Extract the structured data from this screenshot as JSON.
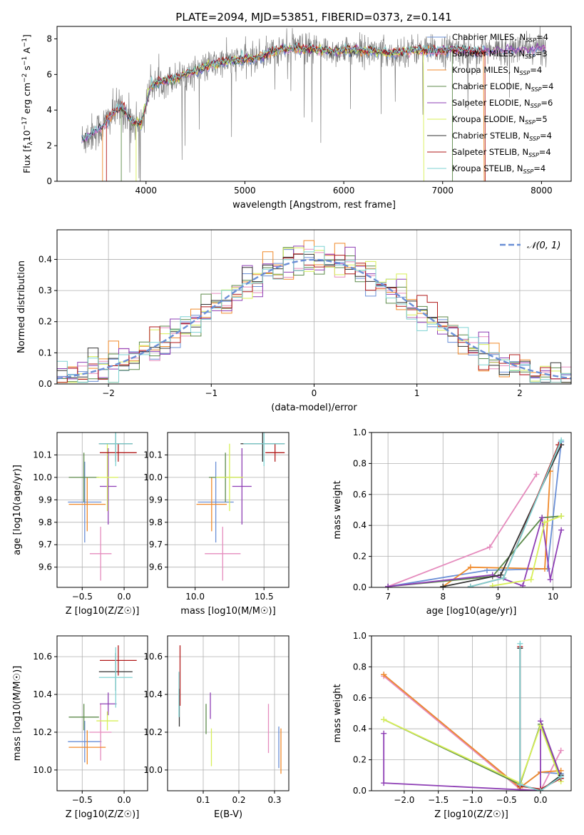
{
  "title": "PLATE=2094, MJD=53851, FIBERID=0373, z=0.141",
  "colors": {
    "Chabrier MILES": "#6a8fd6",
    "Salpeter MILES": "#e58bbd",
    "Kroupa MILES": "#f08a2b",
    "Chabrier ELODIE": "#5c8a4a",
    "Salpeter ELODIE": "#8e3fb5",
    "Kroupa ELODIE": "#d7ef57",
    "Chabrier STELIB": "#333333",
    "Salpeter STELIB": "#b11a1a",
    "Kroupa STELIB": "#7fd3d3",
    "data": "#808080",
    "normal": "#6a8fd6"
  },
  "chart_data": [
    {
      "id": "spectrum",
      "type": "line",
      "xlabel": "wavelength [Angstrom, rest frame]",
      "ylabel": "Flux [f_λ 10^-17 erg cm^-2 s^-1 A^-1]",
      "xlim": [
        3100,
        8300
      ],
      "ylim": [
        0,
        8.7
      ],
      "xticks": [
        4000,
        5000,
        6000,
        7000,
        8000
      ],
      "yticks": [
        0,
        2,
        4,
        6,
        8
      ],
      "legend_position": "upper right",
      "legend": [
        {
          "model": "Chabrier MILES",
          "nssp": "4"
        },
        {
          "model": "Salpeter MILES",
          "nssp": "3"
        },
        {
          "model": "Kroupa MILES",
          "nssp": "4"
        },
        {
          "model": "Chabrier ELODIE",
          "nssp": "4"
        },
        {
          "model": "Salpeter ELODIE",
          "nssp": "6"
        },
        {
          "model": "Kroupa ELODIE",
          "nssp": "5"
        },
        {
          "model": "Chabrier STELIB",
          "nssp": "4"
        },
        {
          "model": "Salpeter STELIB",
          "nssp": "4"
        },
        {
          "model": "Kroupa STELIB",
          "nssp": "4"
        }
      ],
      "continuum": {
        "x": [
          3350,
          3450,
          3550,
          3650,
          3750,
          3850,
          3950,
          4050,
          4150,
          4300,
          4500,
          4700,
          4900,
          5100,
          5300,
          5500,
          5700,
          5900,
          6100,
          6300,
          6500,
          6700,
          6900,
          7100,
          7300,
          7420
        ],
        "y": [
          2.3,
          2.7,
          3.0,
          3.7,
          4.2,
          3.4,
          3.2,
          5.4,
          5.6,
          5.8,
          6.2,
          6.6,
          6.8,
          6.9,
          7.3,
          7.5,
          7.4,
          7.3,
          7.4,
          7.3,
          7.2,
          7.4,
          7.3,
          7.4,
          7.3,
          7.3
        ]
      }
    },
    {
      "id": "residuals",
      "type": "histogram",
      "xlabel": "(data-model)/error",
      "ylabel": "Normed distribution",
      "xlim": [
        -2.5,
        2.5
      ],
      "ylim": [
        0,
        0.495
      ],
      "xticks": [
        -2,
        -1,
        0,
        1,
        2
      ],
      "yticks": [
        0.0,
        0.1,
        0.2,
        0.3,
        0.4
      ],
      "legend": "𝒩(0, 1)",
      "bin_width": 0.1
    },
    {
      "id": "age_vs_Z",
      "type": "errorbar",
      "xlabel": "Z [log10(Z/Z☉)]",
      "ylabel": "age [log10(age/yr)]",
      "xlim": [
        -0.8,
        0.28
      ],
      "ylim": [
        9.51,
        10.2
      ],
      "xticks": [
        -0.5,
        0.0
      ],
      "yticks": [
        9.6,
        9.7,
        9.8,
        9.9,
        10.0,
        10.1
      ],
      "points": [
        {
          "model": "Chabrier MILES",
          "x": -0.47,
          "xerr": 0.2,
          "y": 9.89,
          "yerr": 0.18
        },
        {
          "model": "Salpeter MILES",
          "x": -0.28,
          "xerr": 0.13,
          "y": 9.66,
          "yerr": 0.12
        },
        {
          "model": "Kroupa MILES",
          "x": -0.44,
          "xerr": 0.22,
          "y": 9.88,
          "yerr": 0.12
        },
        {
          "model": "Chabrier ELODIE",
          "x": -0.48,
          "xerr": 0.18,
          "y": 10.0,
          "yerr": 0.11
        },
        {
          "model": "Salpeter ELODIE",
          "x": -0.19,
          "xerr": 0.1,
          "y": 9.96,
          "yerr": 0.17
        },
        {
          "model": "Kroupa ELODIE",
          "x": -0.2,
          "xerr": 0.13,
          "y": 10.0,
          "yerr": 0.15
        },
        {
          "model": "Chabrier STELIB",
          "x": -0.1,
          "xerr": 0.2,
          "y": 10.15,
          "yerr": 0.08
        },
        {
          "model": "Salpeter STELIB",
          "x": -0.07,
          "xerr": 0.22,
          "y": 10.11,
          "yerr": 0.04
        },
        {
          "model": "Kroupa STELIB",
          "x": -0.1,
          "xerr": 0.2,
          "y": 10.15,
          "yerr": 0.1
        }
      ]
    },
    {
      "id": "age_vs_mass",
      "type": "errorbar",
      "xlabel": "mass [log10(M/M☉)]",
      "ylabel": "",
      "xlim": [
        9.8,
        10.68
      ],
      "ylim": [
        9.51,
        10.2
      ],
      "xticks": [
        10.0,
        10.5
      ],
      "yticks": [
        9.6,
        9.7,
        9.8,
        9.9,
        10.0,
        10.1
      ],
      "points": [
        {
          "model": "Chabrier MILES",
          "x": 10.15,
          "xerr": 0.13,
          "y": 9.89,
          "yerr": 0.18
        },
        {
          "model": "Salpeter MILES",
          "x": 10.2,
          "xerr": 0.13,
          "y": 9.66,
          "yerr": 0.12
        },
        {
          "model": "Kroupa MILES",
          "x": 10.12,
          "xerr": 0.11,
          "y": 9.88,
          "yerr": 0.12
        },
        {
          "model": "Chabrier ELODIE",
          "x": 10.22,
          "xerr": 0.12,
          "y": 10.0,
          "yerr": 0.11
        },
        {
          "model": "Salpeter ELODIE",
          "x": 10.34,
          "xerr": 0.07,
          "y": 9.96,
          "yerr": 0.17
        },
        {
          "model": "Kroupa ELODIE",
          "x": 10.25,
          "xerr": 0.1,
          "y": 10.0,
          "yerr": 0.15
        },
        {
          "model": "Chabrier STELIB",
          "x": 10.49,
          "xerr": 0.16,
          "y": 10.15,
          "yerr": 0.08
        },
        {
          "model": "Salpeter STELIB",
          "x": 10.58,
          "xerr": 0.07,
          "y": 10.11,
          "yerr": 0.04
        },
        {
          "model": "Kroupa STELIB",
          "x": 10.5,
          "xerr": 0.15,
          "y": 10.15,
          "yerr": 0.1
        }
      ]
    },
    {
      "id": "weight_vs_age",
      "type": "line",
      "xlabel": "age [log10(age/yr)]",
      "ylabel": "mass weight",
      "xlim": [
        6.7,
        10.33
      ],
      "ylim": [
        0,
        1
      ],
      "xticks": [
        7,
        8,
        9,
        10
      ],
      "yticks": [
        0.0,
        0.2,
        0.4,
        0.6,
        0.8,
        1.0
      ],
      "series": [
        {
          "model": "Chabrier MILES",
          "x": [
            7.0,
            8.8,
            9.9,
            10.15
          ],
          "y": [
            0.005,
            0.11,
            0.12,
            0.94
          ]
        },
        {
          "model": "Salpeter MILES",
          "x": [
            7.0,
            8.85,
            9.7
          ],
          "y": [
            0.005,
            0.26,
            0.73
          ]
        },
        {
          "model": "Kroupa MILES",
          "x": [
            8.0,
            8.5,
            9.85,
            9.95
          ],
          "y": [
            0.005,
            0.13,
            0.12,
            0.75
          ]
        },
        {
          "model": "Chabrier ELODIE",
          "x": [
            7.0,
            8.9,
            9.8,
            10.15
          ],
          "y": [
            0.005,
            0.07,
            0.45,
            0.46
          ]
        },
        {
          "model": "Salpeter ELODIE",
          "x": [
            7.0,
            8.9,
            9.45,
            9.8,
            9.95,
            10.15
          ],
          "y": [
            0.005,
            0.08,
            0.01,
            0.45,
            0.05,
            0.37
          ]
        },
        {
          "model": "Kroupa ELODIE",
          "x": [
            8.9,
            9.6,
            9.85,
            10.15
          ],
          "y": [
            0.01,
            0.05,
            0.42,
            0.46
          ]
        },
        {
          "model": "Chabrier STELIB",
          "x": [
            8.0,
            9.05,
            10.15
          ],
          "y": [
            0.005,
            0.08,
            0.92
          ]
        },
        {
          "model": "Salpeter STELIB",
          "x": [
            8.5,
            9.1,
            10.1
          ],
          "y": [
            0.005,
            0.06,
            0.92
          ]
        },
        {
          "model": "Kroupa STELIB",
          "x": [
            8.5,
            9.1,
            10.15
          ],
          "y": [
            0.005,
            0.06,
            0.95
          ]
        }
      ]
    },
    {
      "id": "mass_vs_Z",
      "type": "errorbar",
      "xlabel": "Z [log10(Z/Z☉)]",
      "ylabel": "mass [log10(M/M☉)]",
      "xlim": [
        -0.8,
        0.28
      ],
      "ylim": [
        9.89,
        10.71
      ],
      "xticks": [
        -0.5,
        0.0
      ],
      "yticks": [
        10.0,
        10.2,
        10.4,
        10.6
      ],
      "points": [
        {
          "model": "Chabrier MILES",
          "x": -0.47,
          "xerr": 0.2,
          "y": 10.15,
          "yerr": 0.11
        },
        {
          "model": "Salpeter MILES",
          "x": -0.28,
          "xerr": 0.13,
          "y": 10.2,
          "yerr": 0.15
        },
        {
          "model": "Kroupa MILES",
          "x": -0.44,
          "xerr": 0.22,
          "y": 10.12,
          "yerr": 0.09
        },
        {
          "model": "Chabrier ELODIE",
          "x": -0.48,
          "xerr": 0.18,
          "y": 10.28,
          "yerr": 0.07
        },
        {
          "model": "Salpeter ELODIE",
          "x": -0.19,
          "xerr": 0.1,
          "y": 10.35,
          "yerr": 0.06
        },
        {
          "model": "Kroupa ELODIE",
          "x": -0.2,
          "xerr": 0.13,
          "y": 10.26,
          "yerr": 0.05
        },
        {
          "model": "Chabrier STELIB",
          "x": -0.1,
          "xerr": 0.2,
          "y": 10.52,
          "yerr": 0.1
        },
        {
          "model": "Salpeter STELIB",
          "x": -0.07,
          "xerr": 0.22,
          "y": 10.58,
          "yerr": 0.08
        },
        {
          "model": "Kroupa STELIB",
          "x": -0.1,
          "xerr": 0.2,
          "y": 10.49,
          "yerr": 0.16
        }
      ]
    },
    {
      "id": "mass_vs_ebv",
      "type": "errorbar",
      "xlabel": "E(B-V)",
      "ylabel": "",
      "xlim": [
        0.0,
        0.34
      ],
      "ylim": [
        9.89,
        10.71
      ],
      "xticks": [
        0.1,
        0.2,
        0.3
      ],
      "yticks": [
        10.0,
        10.2,
        10.4,
        10.6
      ],
      "points": [
        {
          "model": "Chabrier MILES",
          "x": 0.312,
          "yerr": 0.11,
          "y": 10.12
        },
        {
          "model": "Salpeter MILES",
          "x": 0.283,
          "yerr": 0.13,
          "y": 10.22
        },
        {
          "model": "Kroupa MILES",
          "x": 0.318,
          "yerr": 0.12,
          "y": 10.1
        },
        {
          "model": "Chabrier ELODIE",
          "x": 0.108,
          "yerr": 0.08,
          "y": 10.27
        },
        {
          "model": "Salpeter ELODIE",
          "x": 0.12,
          "yerr": 0.07,
          "y": 10.34
        },
        {
          "model": "Kroupa ELODIE",
          "x": 0.123,
          "yerr": 0.1,
          "y": 10.12
        },
        {
          "model": "Chabrier STELIB",
          "x": 0.033,
          "yerr": 0.1,
          "y": 10.33
        },
        {
          "model": "Salpeter STELIB",
          "x": 0.035,
          "yerr": 0.16,
          "y": 10.5
        },
        {
          "model": "Kroupa STELIB",
          "x": 0.032,
          "yerr": 0.12,
          "y": 10.4
        }
      ]
    },
    {
      "id": "weight_vs_Z",
      "type": "line",
      "xlabel": "Z [log10(Z/Z☉)]",
      "ylabel": "mass weight",
      "xlim": [
        -2.48,
        0.45
      ],
      "ylim": [
        0,
        1
      ],
      "xticks": [
        -2.0,
        -1.5,
        -1.0,
        -0.5,
        0.0
      ],
      "yticks": [
        0.0,
        0.2,
        0.4,
        0.6,
        0.8,
        1.0
      ],
      "series": [
        {
          "model": "Chabrier MILES",
          "x": [
            -2.3,
            -0.3,
            0.0,
            0.3
          ],
          "y": [
            0.75,
            0.02,
            0.12,
            0.11
          ]
        },
        {
          "model": "Salpeter MILES",
          "x": [
            -2.3,
            -0.3,
            0.0,
            0.3
          ],
          "y": [
            0.74,
            0.01,
            0.0,
            0.26
          ]
        },
        {
          "model": "Kroupa MILES",
          "x": [
            -2.3,
            -0.3,
            0.0,
            0.3
          ],
          "y": [
            0.75,
            0.02,
            0.12,
            0.13
          ]
        },
        {
          "model": "Chabrier ELODIE",
          "x": [
            -2.3,
            -0.3,
            0.0,
            0.3
          ],
          "y": [
            0.46,
            0.04,
            0.43,
            0.08
          ]
        },
        {
          "model": "Salpeter ELODIE",
          "x": [
            -2.3,
            -2.3,
            0.0,
            0.0,
            0.3
          ],
          "y": [
            0.37,
            0.05,
            0.0,
            0.45,
            0.09
          ]
        },
        {
          "model": "Kroupa ELODIE",
          "x": [
            -2.3,
            -0.3,
            0.0,
            0.3
          ],
          "y": [
            0.46,
            0.05,
            0.42,
            0.06
          ]
        },
        {
          "model": "Chabrier STELIB",
          "x": [
            -0.3,
            -0.3,
            0.0,
            0.3
          ],
          "y": [
            0.92,
            0.04,
            0.0,
            0.1
          ]
        },
        {
          "model": "Salpeter STELIB",
          "x": [
            -0.3,
            -0.3,
            0.0,
            0.3
          ],
          "y": [
            0.93,
            0.03,
            0.01,
            0.08
          ]
        },
        {
          "model": "Kroupa STELIB",
          "x": [
            -0.3,
            -0.3,
            0.0,
            0.3
          ],
          "y": [
            0.95,
            0.04,
            0.0,
            0.09
          ]
        }
      ]
    }
  ]
}
